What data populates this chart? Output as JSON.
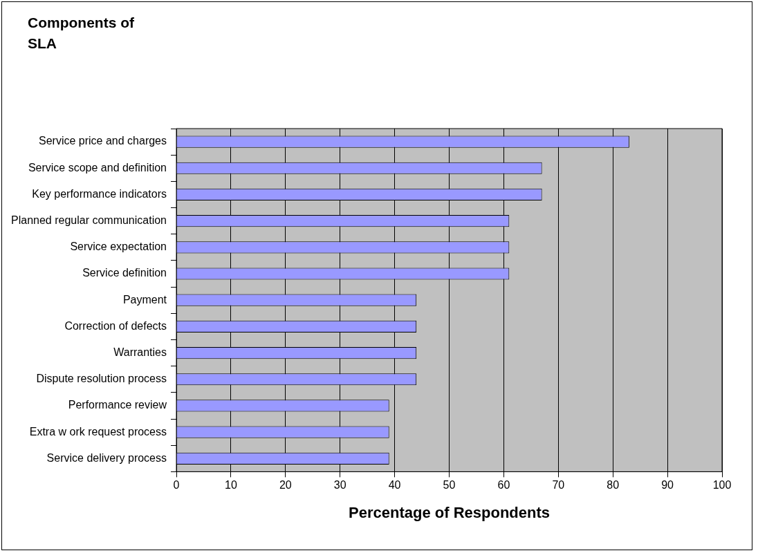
{
  "chart_data": {
    "type": "bar",
    "orientation": "horizontal",
    "title": "Components of SLA",
    "xlabel": "Percentage of Respondents",
    "categories": [
      "Service price and charges",
      "Service scope and definition",
      "Key performance indicators",
      "Planned regular communication",
      "Service expectation",
      "Service definition",
      "Payment",
      "Correction of defects",
      "Warranties",
      "Dispute resolution process",
      "Performance review",
      "Extra w ork request process",
      "Service delivery process"
    ],
    "values": [
      83,
      67,
      67,
      61,
      61,
      61,
      44,
      44,
      44,
      44,
      39,
      39,
      39
    ],
    "color": "#9999ff",
    "xlim": [
      0,
      100
    ],
    "xticks": [
      0,
      10,
      20,
      30,
      40,
      50,
      60,
      70,
      80,
      90,
      100
    ],
    "grid": "x",
    "legend": false
  }
}
